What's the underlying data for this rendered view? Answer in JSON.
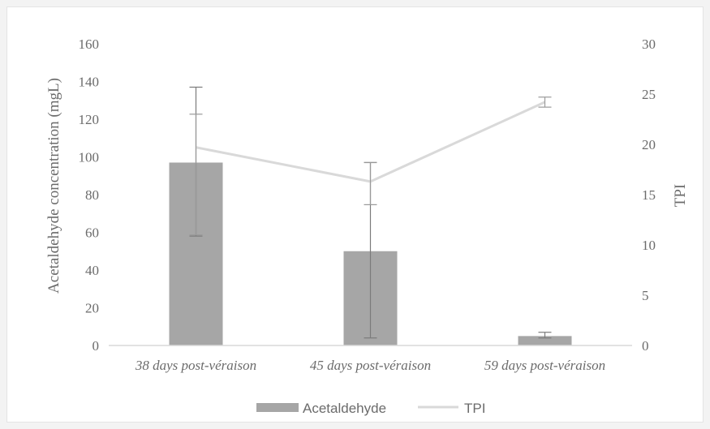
{
  "chart_data": {
    "type": "bar",
    "categories": [
      "38 days post-véraison",
      "45 days post-véraison",
      "59 days post-véraison"
    ],
    "series": [
      {
        "name": "Acetaldehyde",
        "type": "bar",
        "axis": "left",
        "values": [
          97,
          50,
          5
        ],
        "error": [
          [
            58,
            137
          ],
          [
            4,
            97
          ],
          [
            4,
            7
          ]
        ],
        "color": "#a6a6a6"
      },
      {
        "name": "TPI",
        "type": "line",
        "axis": "right",
        "values": [
          19.7,
          16.3,
          24.2
        ],
        "error": [
          [
            11,
            23
          ],
          [
            14,
            18.2
          ],
          [
            23.7,
            24.7
          ]
        ],
        "color": "#d9d9d9"
      }
    ],
    "ylabel": "Acetaldehyde concentration (mgL)",
    "ylabel_right": "TPI",
    "ylim": [
      0,
      160
    ],
    "ylim_right": [
      0,
      30
    ],
    "yticks": [
      "0",
      "20",
      "40",
      "60",
      "80",
      "100",
      "120",
      "140",
      "160"
    ],
    "yticks_right": [
      "0",
      "5",
      "10",
      "15",
      "20",
      "25",
      "30"
    ],
    "grid": false,
    "legend_position": "bottom"
  }
}
